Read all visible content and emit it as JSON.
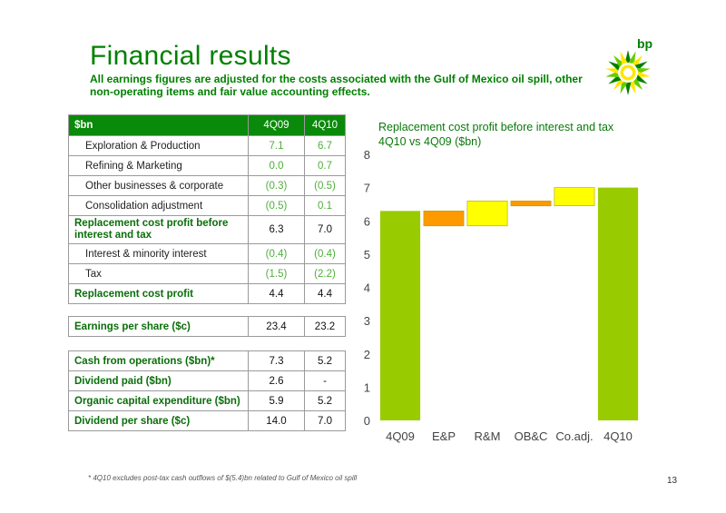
{
  "title": "Financial results",
  "subtitle": "All earnings figures are adjusted for the costs associated with the Gulf of Mexico oil spill, other non-operating items and fair value accounting effects.",
  "logo_text": "bp",
  "table1": {
    "header": [
      "$bn",
      "4Q09",
      "4Q10"
    ],
    "rows": [
      [
        "Exploration & Production",
        "7.1",
        "6.7"
      ],
      [
        "Refining & Marketing",
        "0.0",
        "0.7"
      ],
      [
        "Other businesses & corporate",
        "(0.3)",
        "(0.5)"
      ],
      [
        "Consolidation adjustment",
        "(0.5)",
        "0.1"
      ],
      [
        "Replacement cost profit before interest and tax",
        "6.3",
        "7.0"
      ],
      [
        "Interest & minority interest",
        "(0.4)",
        "(0.4)"
      ],
      [
        "Tax",
        "(1.5)",
        "(2.2)"
      ],
      [
        "Replacement cost profit",
        "4.4",
        "4.4"
      ]
    ]
  },
  "table2": {
    "rows": [
      [
        "Earnings per share ($c)",
        "23.4",
        "23.2"
      ]
    ]
  },
  "table3": {
    "rows": [
      [
        "Cash from operations ($bn)*",
        "7.3",
        "5.2"
      ],
      [
        "Dividend paid ($bn)",
        "2.6",
        "-"
      ],
      [
        "Organic capital expenditure ($bn)",
        "5.9",
        "5.2"
      ],
      [
        "Dividend per share ($c)",
        "14.0",
        "7.0"
      ]
    ]
  },
  "chart_data": {
    "type": "bar",
    "subtype": "waterfall",
    "title_line1": "Replacement cost profit before interest and tax",
    "title_line2": "4Q10 vs 4Q09 ($bn)",
    "categories": [
      "4Q09",
      "E&P",
      "R&M",
      "OB&C",
      "Co.adj.",
      "4Q10"
    ],
    "bars": [
      {
        "start": 0,
        "end": 6.3,
        "color": "#99cc00"
      },
      {
        "start": 6.3,
        "end": 5.85,
        "color": "#ff9900"
      },
      {
        "start": 5.85,
        "end": 6.6,
        "color": "#ffff00"
      },
      {
        "start": 6.6,
        "end": 6.45,
        "color": "#ff9900"
      },
      {
        "start": 6.45,
        "end": 7.0,
        "color": "#ffff00"
      },
      {
        "start": 0,
        "end": 7.0,
        "color": "#99cc00"
      }
    ],
    "yticks": [
      0,
      1,
      2,
      3,
      4,
      5,
      6,
      7,
      8
    ],
    "ylim": [
      0,
      8
    ],
    "grid": false
  },
  "footnote": "*   4Q10 excludes post-tax cash outflows of $(5.4)bn related to Gulf of Mexico oil spill",
  "page_number": "13"
}
